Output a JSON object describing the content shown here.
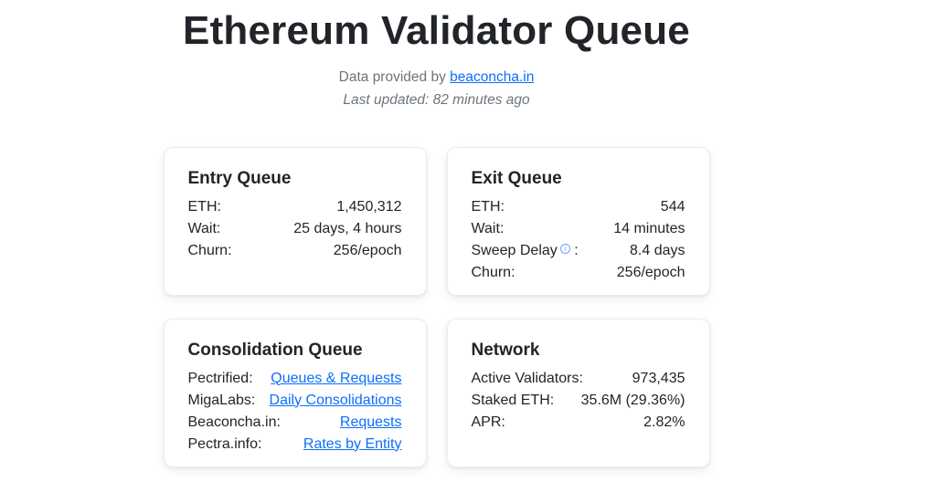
{
  "header": {
    "title": "Ethereum Validator Queue",
    "subtitle_prefix": "Data provided by",
    "subtitle_link": "beaconcha.in",
    "last_updated": "Last updated: 82 minutes ago"
  },
  "colors": {
    "text": "#212529",
    "muted": "#6c757d",
    "link": "#0d6efd",
    "info_icon": "#74a0f8"
  },
  "icons": {
    "info": "i"
  },
  "cards": [
    {
      "id": "entry-queue",
      "title": "Entry Queue",
      "rows": [
        {
          "label": "ETH:",
          "value": "1,450,312"
        },
        {
          "label": "Wait:",
          "value": "25 days, 4 hours"
        },
        {
          "label": "Churn:",
          "value": "256/epoch"
        }
      ]
    },
    {
      "id": "exit-queue",
      "title": "Exit Queue",
      "rows": [
        {
          "label": "ETH:",
          "value": "544"
        },
        {
          "label": "Wait:",
          "value": "14 minutes"
        },
        {
          "label": "Sweep Delay",
          "info_icon": true,
          "suffix": " :",
          "value": "8.4 days"
        },
        {
          "label": "Churn:",
          "value": "256/epoch"
        }
      ]
    },
    {
      "id": "consolidation-queue",
      "title": "Consolidation Queue",
      "rows": [
        {
          "label": "Pectrified:",
          "link": "Queues & Requests"
        },
        {
          "label": "MigaLabs:",
          "link": "Daily Consolidations"
        },
        {
          "label": "Beaconcha.in:",
          "link": "Requests"
        },
        {
          "label": "Pectra.info:",
          "link": "Rates by Entity"
        }
      ]
    },
    {
      "id": "network",
      "title": "Network",
      "rows": [
        {
          "label": "Active Validators:",
          "value": "973,435"
        },
        {
          "label": "Staked ETH:",
          "value": "35.6M (29.36%)"
        },
        {
          "label": "APR:",
          "value": "2.82%"
        }
      ]
    }
  ]
}
